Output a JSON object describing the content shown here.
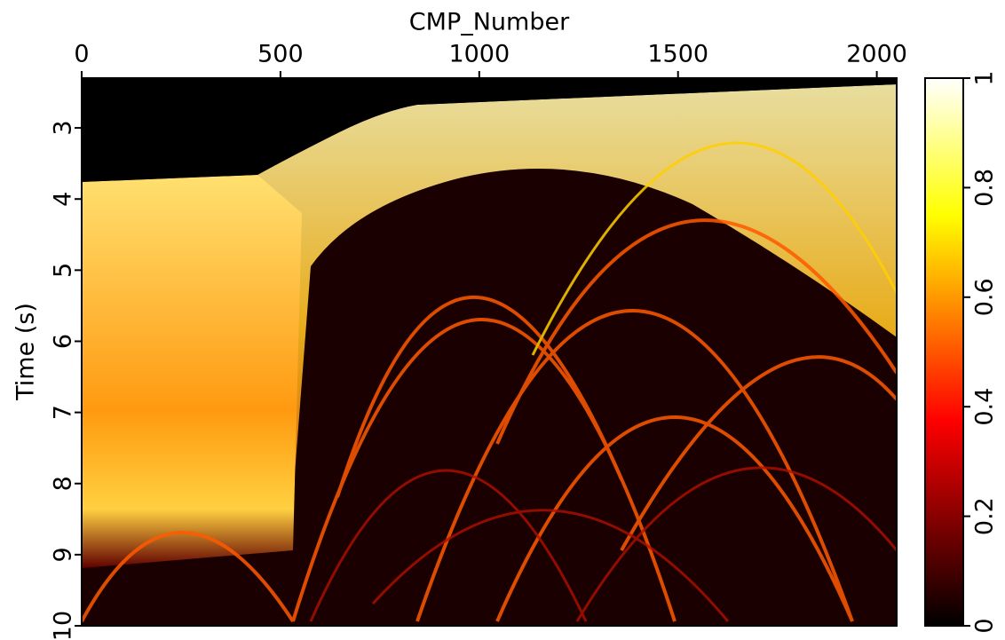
{
  "chart_data": {
    "type": "image",
    "x_label": "CMP_Number",
    "y_label": "Time (s)",
    "xlim": [
      0,
      2050
    ],
    "xticks": [
      0,
      500,
      1000,
      1500,
      2000
    ],
    "ylim": [
      2.3,
      10
    ],
    "yticks": [
      3,
      4,
      5,
      6,
      7,
      8,
      9,
      10
    ],
    "colorbar": {
      "lim": [
        0,
        1
      ],
      "ticks": [
        0,
        0.2,
        0.4,
        0.6,
        0.8,
        1
      ]
    }
  }
}
